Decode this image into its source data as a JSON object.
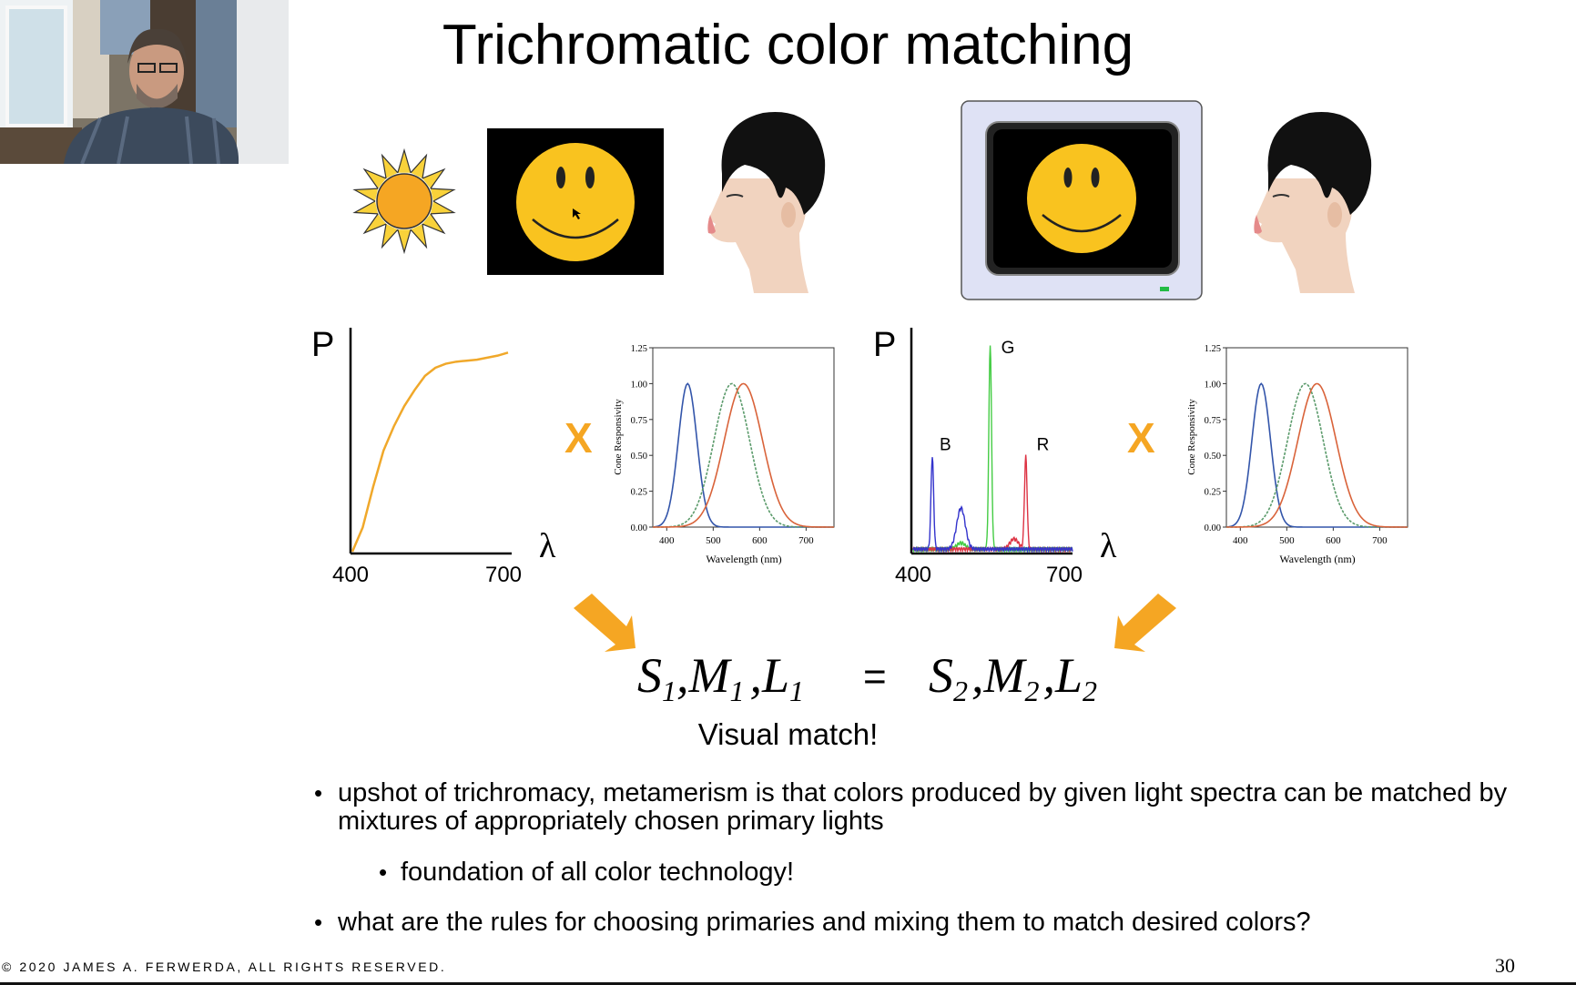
{
  "slide": {
    "title": "Trichromatic color matching",
    "visual_match": "Visual match!",
    "multiply_symbol": "X",
    "equation": {
      "left": {
        "s": "S",
        "s_sub": "1",
        "m": "M",
        "m_sub": "1",
        "l": "L",
        "l_sub": "1"
      },
      "equals": "=",
      "right": {
        "s": "S",
        "s_sub": "2",
        "m": "M",
        "m_sub": "2",
        "l": "L",
        "l_sub": "2"
      },
      "sep": ","
    },
    "bullets": [
      {
        "text": "upshot of trichromacy, metamerism is that colors produced by given light spectra can be matched by mixtures of appropriately chosen primary lights",
        "level": 1
      },
      {
        "text": "foundation of all color technology!",
        "level": 2
      },
      {
        "text": "what are the rules for choosing primaries and mixing them to match desired colors?",
        "level": 1
      }
    ],
    "copyright": "© 2020 JAMES A. FERWERDA,  ALL RIGHTS RESERVED.",
    "page_number": "30",
    "icons": [
      "sun-icon",
      "smiley-face-icon",
      "human-head-profile-icon",
      "crt-monitor-icon",
      "arrow-icon",
      "webcam-presenter"
    ]
  },
  "colors": {
    "sun_orange": "#F5A623",
    "smiley_yellow": "#F9C31F",
    "arrow_orange": "#F5A623",
    "cone_s": "#3355aa",
    "cone_m": "#5a9a6a",
    "cone_l": "#d9633a",
    "sunlight_curve": "#F0A82A",
    "monitor_g": "#44cc44",
    "monitor_r": "#dd3344",
    "monitor_b": "#3333cc"
  },
  "chart_data": [
    {
      "type": "line",
      "id": "sunlight-spectrum",
      "ylabel": "P",
      "xlabel": "λ",
      "tick_labels": [
        "400",
        "700"
      ],
      "xlim": [
        400,
        700
      ],
      "x": [
        400,
        420,
        440,
        460,
        480,
        500,
        520,
        540,
        560,
        580,
        600,
        620,
        640,
        660,
        680,
        700
      ],
      "series": [
        {
          "values": [
            0.0,
            0.12,
            0.32,
            0.5,
            0.62,
            0.72,
            0.8,
            0.87,
            0.91,
            0.93,
            0.94,
            0.945,
            0.95,
            0.96,
            0.97,
            0.985
          ]
        }
      ]
    },
    {
      "type": "line",
      "id": "cone-responsivity-1",
      "xlabel": "Wavelength (nm)",
      "ylabel": "Cone Responsivity",
      "xticks": [
        "400",
        "500",
        "600",
        "700"
      ],
      "yticks": [
        "0.00",
        "0.25",
        "0.50",
        "0.75",
        "1.00",
        "1.25"
      ],
      "xlim": [
        370,
        760
      ],
      "ylim": [
        0,
        1.25
      ],
      "series": [
        {
          "peak": 445,
          "width": 22
        },
        {
          "peak": 540,
          "width": 42
        },
        {
          "peak": 565,
          "width": 45
        }
      ]
    },
    {
      "type": "line",
      "id": "monitor-spectrum",
      "ylabel": "P",
      "xlabel": "λ",
      "tick_labels": [
        "400",
        "700"
      ],
      "xlim": [
        400,
        700
      ],
      "series": [
        {
          "name": "G",
          "peaks": [
            {
              "x": 545,
              "y": 1.0
            },
            {
              "x": 490,
              "y": 0.03
            }
          ]
        },
        {
          "name": "R",
          "peaks": [
            {
              "x": 612,
              "y": 0.45
            },
            {
              "x": 590,
              "y": 0.05
            }
          ]
        },
        {
          "name": "B",
          "peaks": [
            {
              "x": 436,
              "y": 0.45
            },
            {
              "x": 490,
              "y": 0.2
            }
          ]
        }
      ]
    },
    {
      "type": "line",
      "id": "cone-responsivity-2",
      "xlabel": "Wavelength (nm)",
      "ylabel": "Cone Responsivity",
      "xticks": [
        "400",
        "500",
        "600",
        "700"
      ],
      "yticks": [
        "0.00",
        "0.25",
        "0.50",
        "0.75",
        "1.00",
        "1.25"
      ],
      "xlim": [
        370,
        760
      ],
      "ylim": [
        0,
        1.25
      ],
      "series": [
        {
          "peak": 445,
          "width": 22
        },
        {
          "peak": 540,
          "width": 42
        },
        {
          "peak": 565,
          "width": 45
        }
      ]
    }
  ]
}
